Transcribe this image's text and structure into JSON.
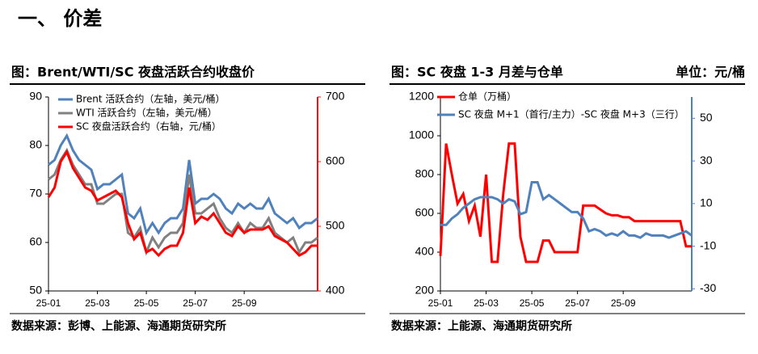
{
  "header": {
    "title": "一、 价差"
  },
  "chart_data": [
    {
      "type": "line",
      "title": "图：Brent/WTI/SC 夜盘活跃合约收盘价",
      "source": "数据来源：彭博、上能源、海通期货研究所",
      "categories": [
        "25-01",
        null,
        null,
        null,
        null,
        null,
        null,
        null,
        "25-03",
        null,
        null,
        null,
        null,
        null,
        null,
        null,
        "25-05",
        null,
        null,
        null,
        null,
        null,
        null,
        null,
        "25-07",
        null,
        null,
        null,
        null,
        null,
        null,
        null,
        "25-09",
        null,
        null,
        null,
        null,
        null,
        null,
        null,
        null,
        null,
        null,
        null,
        null
      ],
      "ylim": [
        50,
        90
      ],
      "yticks": [
        50,
        60,
        70,
        80,
        90
      ],
      "y2lim": [
        400,
        700
      ],
      "y2ticks": [
        400,
        500,
        600,
        700
      ],
      "y2_axis_color": "#ff0000",
      "series": [
        {
          "name": "Brent 活跃合约（左轴，美元/桶）",
          "color": "#4f81bd",
          "values": [
            76,
            77,
            80,
            82,
            79,
            77,
            76,
            75,
            71,
            72,
            72,
            73,
            74,
            66,
            65,
            67,
            62,
            64,
            62,
            64,
            65,
            65,
            67,
            77,
            68,
            69,
            69,
            70,
            69,
            67,
            66,
            68,
            67,
            68,
            67,
            67,
            69,
            66,
            65,
            64,
            65,
            63,
            64,
            64,
            65
          ]
        },
        {
          "name": "WTI 活跃合约（左轴，美元/桶）",
          "color": "#808080",
          "values": [
            73,
            74,
            77,
            79,
            76,
            74,
            72,
            72,
            68,
            68,
            69,
            70,
            70,
            62,
            61,
            63,
            58,
            61,
            59,
            61,
            62,
            62,
            64,
            74,
            66,
            66,
            67,
            68,
            65,
            63,
            62,
            64,
            62,
            64,
            63,
            63,
            65,
            62,
            61,
            60,
            61,
            58,
            60,
            60,
            61
          ]
        },
        {
          "name": "SC 夜盘活跃合约（右轴，元/桶）",
          "color": "#ff0000",
          "axis": "y2",
          "values": [
            545,
            560,
            600,
            615,
            590,
            575,
            560,
            555,
            540,
            545,
            550,
            555,
            545,
            505,
            480,
            490,
            460,
            465,
            455,
            465,
            470,
            470,
            490,
            560,
            505,
            515,
            510,
            520,
            505,
            490,
            485,
            500,
            490,
            495,
            495,
            495,
            500,
            485,
            480,
            475,
            465,
            455,
            460,
            470,
            470
          ]
        }
      ]
    },
    {
      "type": "line",
      "title": "图：SC 夜盘 1-3 月差与仓单",
      "unit": "单位：元/桶",
      "source": "数据来源：上能源、海通期货研究所",
      "categories": [
        "25-01",
        null,
        null,
        null,
        null,
        null,
        null,
        null,
        "25-03",
        null,
        null,
        null,
        null,
        null,
        null,
        null,
        "25-05",
        null,
        null,
        null,
        null,
        null,
        null,
        null,
        "25-07",
        null,
        null,
        null,
        null,
        null,
        null,
        null,
        "25-09",
        null,
        null,
        null,
        null,
        null,
        null,
        null,
        null,
        null,
        null,
        null,
        null
      ],
      "ylim": [
        200,
        1200
      ],
      "yticks": [
        200,
        400,
        600,
        800,
        1000,
        1200
      ],
      "y2lim": [
        -31,
        60
      ],
      "y2ticks": [
        -30,
        -10,
        10,
        30,
        50
      ],
      "y2_axis_color": "#4f81bd",
      "series": [
        {
          "name": "仓单（万桶）",
          "color": "#ff0000",
          "values": [
            380,
            960,
            800,
            650,
            700,
            560,
            640,
            480,
            800,
            350,
            350,
            700,
            960,
            960,
            480,
            350,
            350,
            350,
            460,
            460,
            400,
            400,
            400,
            400,
            400,
            640,
            640,
            640,
            620,
            600,
            590,
            590,
            580,
            580,
            560,
            560,
            560,
            560,
            560,
            560,
            560,
            560,
            560,
            430,
            430
          ]
        },
        {
          "name": "SC 夜盘 M+1（首行/主力）-SC 夜盘 M+3（三行）",
          "color": "#4f81bd",
          "axis": "y2",
          "values": [
            0,
            0,
            3,
            5,
            8,
            10,
            12,
            13,
            13,
            13,
            12,
            10,
            12,
            11,
            5,
            6,
            20,
            20,
            12,
            14,
            12,
            10,
            8,
            6,
            6,
            3,
            -3,
            -2,
            -3,
            -5,
            -4,
            -5,
            -3,
            -5,
            -5,
            -6,
            -4,
            -5,
            -5,
            -5,
            -6,
            -5,
            -4,
            -3,
            -5
          ]
        }
      ]
    }
  ]
}
